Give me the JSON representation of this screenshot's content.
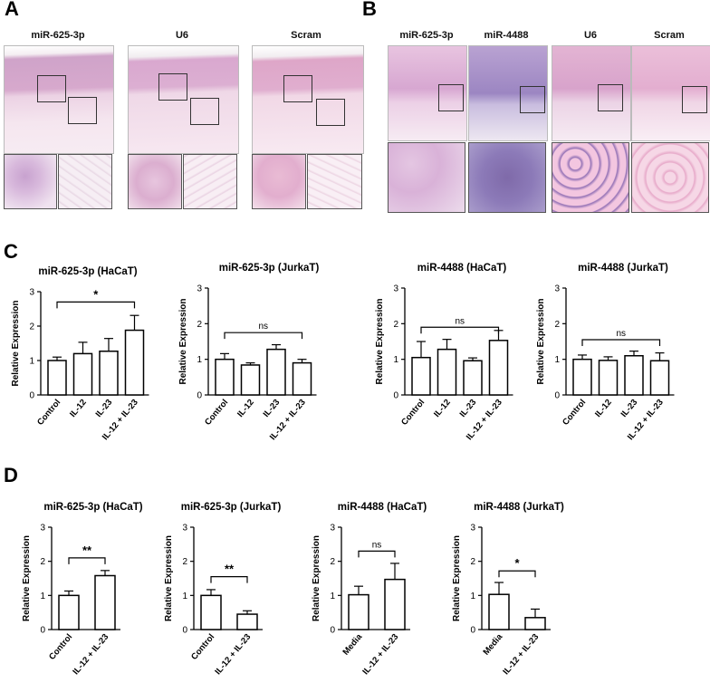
{
  "panels": {
    "a": "A",
    "b": "B",
    "c": "C",
    "d": "D"
  },
  "histology_a": {
    "titles": [
      "miR-625-3p",
      "U6",
      "Scram"
    ]
  },
  "histology_b": {
    "titles": [
      "miR-625-3p",
      "miR-4488",
      "U6",
      "Scram"
    ]
  },
  "colors": {
    "epidermis": "#d9a6c8",
    "dermis": "#f0d6e6",
    "purple_stain": "#8f6fb5",
    "bar_fill": "#ffffff",
    "ink": "#000000"
  },
  "chart_data": [
    {
      "type": "bar",
      "title": "miR-625-3p (HaCaT)",
      "ylabel": "Relative Expression",
      "categories": [
        "Control",
        "IL-12",
        "IL-23",
        "IL-12 + IL-23"
      ],
      "values": [
        1.0,
        1.2,
        1.27,
        1.88
      ],
      "errors": [
        0.1,
        0.33,
        0.37,
        0.43
      ],
      "ylim": [
        0,
        3
      ],
      "yticks": [
        0,
        1,
        2,
        3
      ],
      "significance": [
        {
          "from": 0,
          "to": 3,
          "label": "*",
          "level": 2.7
        }
      ]
    },
    {
      "type": "bar",
      "title": "miR-625-3p (JurkaT)",
      "ylabel": "Relative Expression",
      "categories": [
        "Control",
        "IL-12",
        "IL-23",
        "IL-12 + IL-23"
      ],
      "values": [
        1.0,
        0.84,
        1.28,
        0.9
      ],
      "errors": [
        0.16,
        0.06,
        0.13,
        0.1
      ],
      "ylim": [
        0,
        3
      ],
      "yticks": [
        0,
        1,
        2,
        3
      ],
      "significance": [
        {
          "from": 0,
          "to": 3,
          "label": "ns",
          "level": 1.75
        }
      ]
    },
    {
      "type": "bar",
      "title": "miR-4488 (HaCaT)",
      "ylabel": "Relative Expression",
      "categories": [
        "Control",
        "IL-12",
        "IL-23",
        "IL-12 + IL-23"
      ],
      "values": [
        1.05,
        1.28,
        0.96,
        1.53
      ],
      "errors": [
        0.45,
        0.28,
        0.08,
        0.28
      ],
      "ylim": [
        0,
        3
      ],
      "yticks": [
        0,
        1,
        2,
        3
      ],
      "significance": [
        {
          "from": 0,
          "to": 3,
          "label": "ns",
          "level": 1.9
        }
      ]
    },
    {
      "type": "bar",
      "title": "miR-4488  (JurkaT)",
      "ylabel": "Relative Expression",
      "categories": [
        "Control",
        "IL-12",
        "IL-23",
        "IL-12 + IL-23"
      ],
      "values": [
        1.0,
        0.97,
        1.1,
        0.96
      ],
      "errors": [
        0.12,
        0.1,
        0.13,
        0.22
      ],
      "ylim": [
        0,
        3
      ],
      "yticks": [
        0,
        1,
        2,
        3
      ],
      "significance": [
        {
          "from": 0,
          "to": 3,
          "label": "ns",
          "level": 1.55
        }
      ]
    },
    {
      "type": "bar",
      "title": "miR-625-3p (HaCaT)",
      "ylabel": "Relative Expression",
      "categories": [
        "Control",
        "IL-12 + IL-23"
      ],
      "values": [
        1.0,
        1.58
      ],
      "errors": [
        0.13,
        0.15
      ],
      "ylim": [
        0,
        3
      ],
      "yticks": [
        0,
        1,
        2,
        3
      ],
      "significance": [
        {
          "from": 0,
          "to": 1,
          "label": "**",
          "level": 2.1
        }
      ]
    },
    {
      "type": "bar",
      "title": "miR-625-3p (JurkaT)",
      "ylabel": "Relative Expression",
      "categories": [
        "Control",
        "IL-12 + IL-23"
      ],
      "values": [
        1.0,
        0.45
      ],
      "errors": [
        0.17,
        0.1
      ],
      "ylim": [
        0,
        3
      ],
      "yticks": [
        0,
        1,
        2,
        3
      ],
      "significance": [
        {
          "from": 0,
          "to": 1,
          "label": "**",
          "level": 1.55
        }
      ]
    },
    {
      "type": "bar",
      "title": "miR-4488 (HaCaT)",
      "ylabel": "Relative Expression",
      "categories": [
        "Media",
        "IL-12 + IL-23"
      ],
      "values": [
        1.02,
        1.47
      ],
      "errors": [
        0.25,
        0.47
      ],
      "ylim": [
        0,
        3
      ],
      "yticks": [
        0,
        1,
        2,
        3
      ],
      "significance": [
        {
          "from": 0,
          "to": 1,
          "label": "ns",
          "level": 2.3
        }
      ]
    },
    {
      "type": "bar",
      "title": "miR-4488 (JurkaT)",
      "ylabel": "Relative Expression",
      "categories": [
        "Media",
        "IL-12 + IL-23"
      ],
      "values": [
        1.03,
        0.35
      ],
      "errors": [
        0.35,
        0.25
      ],
      "ylim": [
        0,
        3
      ],
      "yticks": [
        0,
        1,
        2,
        3
      ],
      "significance": [
        {
          "from": 0,
          "to": 1,
          "label": "*",
          "level": 1.72
        }
      ]
    }
  ]
}
